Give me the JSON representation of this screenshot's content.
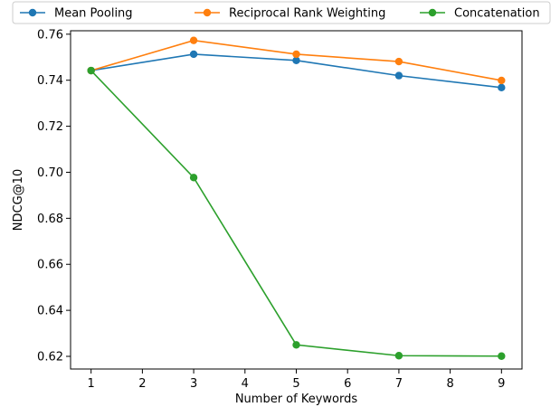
{
  "chart_data": {
    "type": "line",
    "title": "",
    "xlabel": "Number of Keywords",
    "ylabel": "NDCG@10",
    "xlim": [
      0.6,
      9.4
    ],
    "ylim": [
      0.6145,
      0.7615
    ],
    "x_ticks": [
      1,
      2,
      3,
      4,
      5,
      6,
      7,
      8,
      9
    ],
    "y_ticks": [
      0.62,
      0.64,
      0.66,
      0.68,
      0.7,
      0.72,
      0.74,
      0.76
    ],
    "y_tick_labels": [
      "0.62",
      "0.64",
      "0.66",
      "0.68",
      "0.70",
      "0.72",
      "0.74",
      "0.76"
    ],
    "grid": false,
    "legend_position": "top, above plot",
    "x": [
      1,
      3,
      5,
      7,
      9
    ],
    "series": [
      {
        "name": "Mean Pooling",
        "color": "#1f77b4",
        "values": [
          0.7442,
          0.7513,
          0.7486,
          0.742,
          0.7368
        ]
      },
      {
        "name": "Reciprocal Rank Weighting",
        "color": "#ff7f0e",
        "values": [
          0.7442,
          0.7573,
          0.7513,
          0.7481,
          0.7399
        ]
      },
      {
        "name": "Concatenation",
        "color": "#2ca02c",
        "values": [
          0.7442,
          0.6977,
          0.625,
          0.6203,
          0.6201
        ]
      }
    ]
  }
}
